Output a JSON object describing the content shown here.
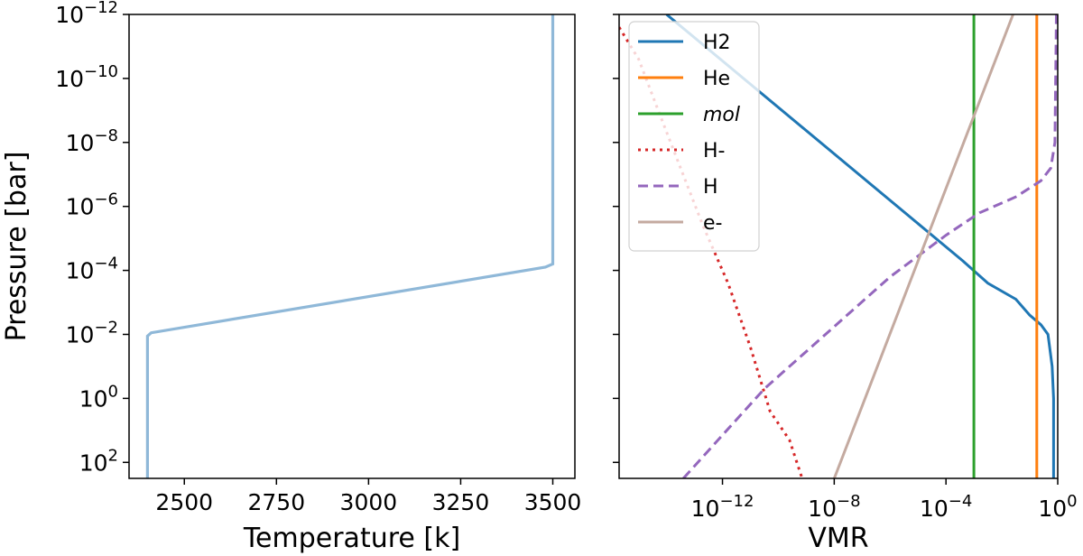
{
  "chart_data": [
    {
      "type": "line",
      "xlabel": "Temperature [k]",
      "ylabel": "Pressure [bar]",
      "xlim": [
        2350,
        3560
      ],
      "ylim_log10": [
        2.5,
        -12
      ],
      "y_scale": "log",
      "y_inverted": true,
      "grid": false,
      "xticks": [
        {
          "value": 2500,
          "label": "2500"
        },
        {
          "value": 2750,
          "label": "2750"
        },
        {
          "value": 3000,
          "label": "3000"
        },
        {
          "value": 3250,
          "label": "3250"
        },
        {
          "value": 3500,
          "label": "3500"
        }
      ],
      "yticks": [
        {
          "exp": -12,
          "base": "10",
          "sup": "−12"
        },
        {
          "exp": -10,
          "base": "10",
          "sup": "−10"
        },
        {
          "exp": -8,
          "base": "10",
          "sup": "−8"
        },
        {
          "exp": -6,
          "base": "10",
          "sup": "−6"
        },
        {
          "exp": -4,
          "base": "10",
          "sup": "−4"
        },
        {
          "exp": -2,
          "base": "10",
          "sup": "−2"
        },
        {
          "exp": 0,
          "base": "10",
          "sup": "0"
        },
        {
          "exp": 2,
          "base": "10",
          "sup": "2"
        }
      ],
      "series": [
        {
          "color": "#8fb8d8",
          "dash": "solid",
          "points": [
            [
              2400,
              2.5
            ],
            [
              2400,
              -1.95
            ],
            [
              2410,
              -2.05
            ],
            [
              3480,
              -4.1
            ],
            [
              3500,
              -4.2
            ],
            [
              3500,
              -12
            ]
          ]
        }
      ]
    },
    {
      "type": "line",
      "xlabel": "VMR",
      "ylabel": "",
      "xlim_log10": [
        -15.7,
        0
      ],
      "ylim_log10": [
        2.5,
        -12
      ],
      "x_scale": "log",
      "y_scale": "log",
      "y_inverted": true,
      "grid": false,
      "legend": "top-left",
      "xticks": [
        {
          "exp": -12,
          "base": "10",
          "sup": "−12"
        },
        {
          "exp": -8,
          "base": "10",
          "sup": "−8"
        },
        {
          "exp": -4,
          "base": "10",
          "sup": "−4"
        },
        {
          "exp": 0,
          "base": "10",
          "sup": "0"
        }
      ],
      "yticks_exp": [
        -12,
        -10,
        -8,
        -6,
        -4,
        -2,
        0,
        2
      ],
      "series": [
        {
          "name": "H2",
          "color": "#1f77b4",
          "dash": "solid",
          "points": [
            [
              -14,
              -12
            ],
            [
              -3.4,
              -4.3
            ],
            [
              -2.5,
              -3.6
            ],
            [
              -1.5,
              -3.1
            ],
            [
              -1.0,
              -2.6
            ],
            [
              -0.6,
              -2.3
            ],
            [
              -0.35,
              -2.0
            ],
            [
              -0.2,
              -1.0
            ],
            [
              -0.15,
              0
            ],
            [
              -0.15,
              2.5
            ]
          ]
        },
        {
          "name": "He",
          "color": "#ff7f0e",
          "dash": "solid",
          "points": [
            [
              -0.75,
              -12
            ],
            [
              -0.75,
              2.5
            ]
          ]
        },
        {
          "name": "mol",
          "italic": true,
          "color": "#2ca02c",
          "dash": "solid",
          "points": [
            [
              -3.0,
              -12
            ],
            [
              -3.0,
              2.5
            ]
          ]
        },
        {
          "name": "H-",
          "color": "#d62728",
          "dash": "dotted",
          "points": [
            [
              -15.7,
              -11.6
            ],
            [
              -15.0,
              -10.6
            ],
            [
              -14.3,
              -9.0
            ],
            [
              -13.5,
              -7.2
            ],
            [
              -12.7,
              -5.4
            ],
            [
              -11.8,
              -3.6
            ],
            [
              -11.0,
              -1.6
            ],
            [
              -10.3,
              0.4
            ],
            [
              -9.6,
              1.3
            ],
            [
              -9.3,
              2.1
            ],
            [
              -9.15,
              2.5
            ]
          ]
        },
        {
          "name": "H",
          "color": "#9467bd",
          "dash": "dashed",
          "points": [
            [
              -13.4,
              2.5
            ],
            [
              -10.5,
              -0.3
            ],
            [
              -6.0,
              -3.8
            ],
            [
              -4.0,
              -5.1
            ],
            [
              -2.8,
              -5.8
            ],
            [
              -1.5,
              -6.3
            ],
            [
              -0.6,
              -6.8
            ],
            [
              -0.25,
              -7.2
            ],
            [
              -0.1,
              -8.0
            ],
            [
              -0.05,
              -12
            ]
          ]
        },
        {
          "name": "e-",
          "color": "#c4aaa0",
          "dash": "solid",
          "points": [
            [
              -8.0,
              2.5
            ],
            [
              -1.6,
              -12
            ]
          ]
        }
      ]
    }
  ]
}
